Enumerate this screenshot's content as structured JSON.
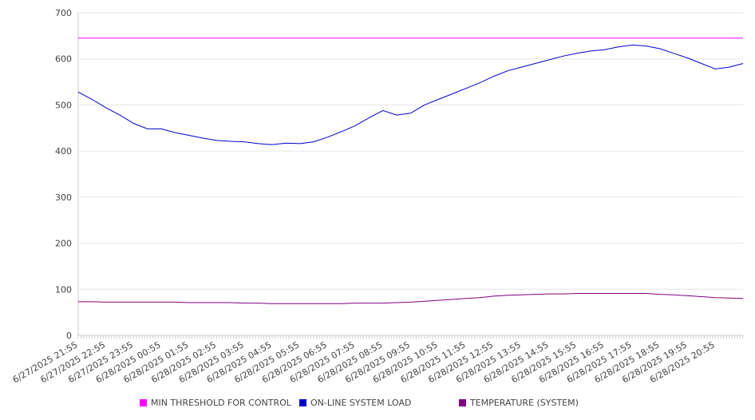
{
  "chart_data": {
    "type": "line",
    "title": "",
    "xlabel": "",
    "ylabel": "",
    "ylim": [
      0,
      700
    ],
    "yticks": [
      0,
      100,
      200,
      300,
      400,
      500,
      600,
      700
    ],
    "grid": "horizontal",
    "legend_position": "bottom",
    "x_ticks": [
      "6/27/2025 21:55",
      "6/27/2025 22:55",
      "6/27/2025 23:55",
      "6/28/2025 00:55",
      "6/28/2025 01:55",
      "6/28/2025 02:55",
      "6/28/2025 03:55",
      "6/28/2025 04:55",
      "6/28/2025 05:55",
      "6/28/2025 06:55",
      "6/28/2025 07:55",
      "6/28/2025 08:55",
      "6/28/2025 09:55",
      "6/28/2025 10:55",
      "6/28/2025 11:55",
      "6/28/2025 12:55",
      "6/28/2025 13:55",
      "6/28/2025 14:55",
      "6/28/2025 15:55",
      "6/28/2025 16:55",
      "6/28/2025 17:55",
      "6/28/2025 18:55",
      "6/28/2025 19:55",
      "6/28/2025 20:55"
    ],
    "x": [
      "6/27/2025 21:55",
      "6/27/2025 22:25",
      "6/27/2025 22:55",
      "6/27/2025 23:25",
      "6/27/2025 23:55",
      "6/28/2025 00:25",
      "6/28/2025 00:55",
      "6/28/2025 01:25",
      "6/28/2025 01:55",
      "6/28/2025 02:25",
      "6/28/2025 02:55",
      "6/28/2025 03:25",
      "6/28/2025 03:55",
      "6/28/2025 04:25",
      "6/28/2025 04:55",
      "6/28/2025 05:25",
      "6/28/2025 05:55",
      "6/28/2025 06:25",
      "6/28/2025 06:55",
      "6/28/2025 07:25",
      "6/28/2025 07:55",
      "6/28/2025 08:25",
      "6/28/2025 08:55",
      "6/28/2025 09:25",
      "6/28/2025 09:55",
      "6/28/2025 10:25",
      "6/28/2025 10:55",
      "6/28/2025 11:25",
      "6/28/2025 11:55",
      "6/28/2025 12:25",
      "6/28/2025 12:55",
      "6/28/2025 13:25",
      "6/28/2025 13:55",
      "6/28/2025 14:25",
      "6/28/2025 14:55",
      "6/28/2025 15:25",
      "6/28/2025 15:55",
      "6/28/2025 16:25",
      "6/28/2025 16:55",
      "6/28/2025 17:25",
      "6/28/2025 17:55",
      "6/28/2025 18:25",
      "6/28/2025 18:55",
      "6/28/2025 19:25",
      "6/28/2025 19:55",
      "6/28/2025 20:25",
      "6/28/2025 20:55",
      "6/28/2025 21:25",
      "6/28/2025 21:55"
    ],
    "series": [
      {
        "name": "MIN THRESHOLD FOR CONTROL",
        "color": "#ff00ff",
        "values": [
          645,
          645,
          645,
          645,
          645,
          645,
          645,
          645,
          645,
          645,
          645,
          645,
          645,
          645,
          645,
          645,
          645,
          645,
          645,
          645,
          645,
          645,
          645,
          645,
          645,
          645,
          645,
          645,
          645,
          645,
          645,
          645,
          645,
          645,
          645,
          645,
          645,
          645,
          645,
          645,
          645,
          645,
          645,
          645,
          645,
          645,
          645,
          645,
          645
        ]
      },
      {
        "name": "ON-LINE SYSTEM LOAD",
        "color": "#0000cc",
        "values": [
          528,
          512,
          494,
          478,
          460,
          448,
          448,
          440,
          434,
          428,
          423,
          421,
          420,
          416,
          414,
          417,
          416,
          420,
          430,
          442,
          455,
          472,
          488,
          478,
          482,
          500,
          512,
          524,
          536,
          548,
          562,
          574,
          582,
          590,
          598,
          606,
          612,
          617,
          620,
          626,
          630,
          628,
          622,
          612,
          602,
          590,
          578,
          582,
          590
        ]
      },
      {
        "name": "TEMPERATURE (SYSTEM)",
        "color": "#800080",
        "values": [
          73,
          73,
          72,
          72,
          72,
          72,
          72,
          72,
          71,
          71,
          71,
          71,
          70,
          70,
          69,
          69,
          69,
          69,
          69,
          69,
          70,
          70,
          70,
          71,
          72,
          74,
          76,
          78,
          80,
          82,
          85,
          87,
          88,
          89,
          90,
          90,
          91,
          91,
          91,
          91,
          91,
          91,
          89,
          88,
          86,
          84,
          82,
          81,
          80
        ]
      }
    ]
  },
  "legend": {
    "items": [
      {
        "label": "MIN THRESHOLD FOR CONTROL",
        "color": "#ff00ff"
      },
      {
        "label": "ON-LINE SYSTEM LOAD",
        "color": "#0000cc"
      },
      {
        "label": "TEMPERATURE (SYSTEM)",
        "color": "#800080"
      }
    ]
  }
}
